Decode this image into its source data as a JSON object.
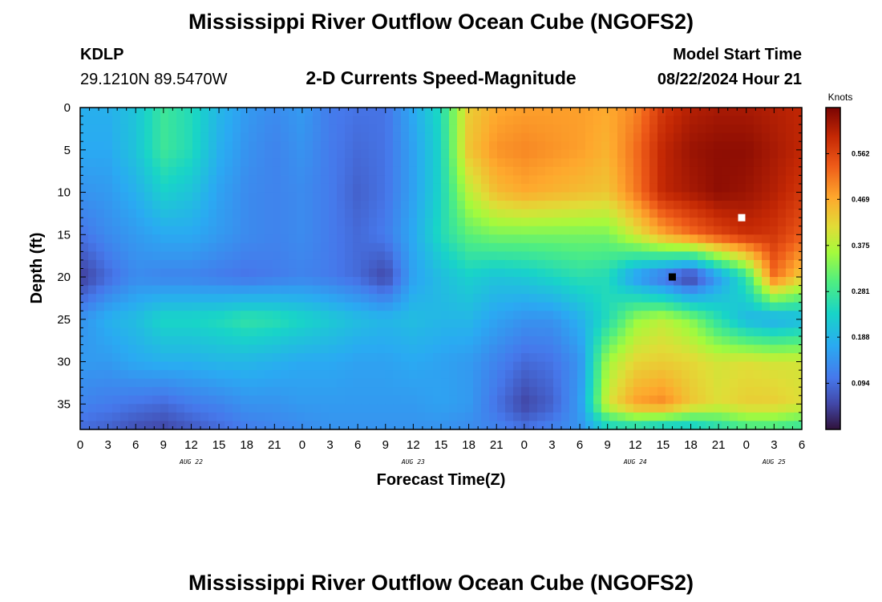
{
  "title": "Mississippi River Outflow Ocean Cube (NGOFS2)",
  "station": {
    "id": "KDLP",
    "coords": "29.1210N  89.5470W"
  },
  "plot_subtitle": "2-D Currents Speed-Magnitude",
  "model_start": {
    "label": "Model Start Time",
    "value": "08/22/2024 Hour 21"
  },
  "footer_title": "Mississippi River Outflow Ocean Cube (NGOFS2)",
  "chart_data": {
    "type": "heatmap",
    "title": "2-D Currents Speed-Magnitude",
    "xlabel": "Forecast Time(Z)",
    "ylabel": "Depth (ft)",
    "x_hours_range": [
      0,
      78
    ],
    "x_ticks": [
      "0",
      "3",
      "6",
      "9",
      "12",
      "15",
      "18",
      "21",
      "0",
      "3",
      "6",
      "9",
      "12",
      "15",
      "18",
      "21",
      "0",
      "3",
      "6",
      "9",
      "12",
      "15",
      "18",
      "21",
      "0",
      "3",
      "6"
    ],
    "x_tick_step_hours": 3,
    "day_labels": [
      {
        "label": "AUG 22",
        "hour": 12
      },
      {
        "label": "AUG 23",
        "hour": 36
      },
      {
        "label": "AUG 24",
        "hour": 60
      },
      {
        "label": "AUG 25",
        "hour": 75
      }
    ],
    "y_ticks": [
      0,
      5,
      10,
      15,
      20,
      25,
      30,
      35
    ],
    "y_range": [
      0,
      38
    ],
    "colorbar": {
      "unit": "Knots",
      "range": [
        0,
        0.656
      ],
      "tick_values": [
        0.094,
        0.188,
        0.281,
        0.375,
        0.469,
        0.562
      ],
      "ticks": [
        "0.094",
        "0.188",
        "0.281",
        "0.375",
        "0.469",
        "0.562"
      ]
    },
    "markers": [
      {
        "hour": 71.5,
        "depth": 13,
        "color": "#ffffff"
      },
      {
        "hour": 64,
        "depth": 20,
        "color": "#000000"
      }
    ],
    "grid_hours": [
      0,
      3,
      6,
      9,
      12,
      15,
      18,
      21,
      24,
      27,
      30,
      33,
      36,
      39,
      42,
      45,
      48,
      51,
      54,
      57,
      60,
      63,
      66,
      69,
      72,
      75,
      78
    ],
    "grid_depths": [
      0,
      5,
      10,
      15,
      20,
      25,
      30,
      35,
      38
    ],
    "values": [
      [
        0.18,
        0.18,
        0.21,
        0.28,
        0.25,
        0.19,
        0.15,
        0.13,
        0.15,
        0.11,
        0.1,
        0.1,
        0.17,
        0.25,
        0.43,
        0.47,
        0.48,
        0.48,
        0.48,
        0.47,
        0.5,
        0.58,
        0.61,
        0.62,
        0.62,
        0.61,
        0.6
      ],
      [
        0.17,
        0.17,
        0.21,
        0.28,
        0.25,
        0.18,
        0.14,
        0.12,
        0.14,
        0.11,
        0.09,
        0.1,
        0.16,
        0.24,
        0.44,
        0.49,
        0.5,
        0.49,
        0.48,
        0.46,
        0.52,
        0.6,
        0.63,
        0.64,
        0.64,
        0.62,
        0.6
      ],
      [
        0.14,
        0.15,
        0.18,
        0.23,
        0.21,
        0.16,
        0.13,
        0.12,
        0.13,
        0.11,
        0.08,
        0.1,
        0.16,
        0.24,
        0.38,
        0.45,
        0.47,
        0.46,
        0.45,
        0.44,
        0.51,
        0.6,
        0.62,
        0.64,
        0.63,
        0.61,
        0.58
      ],
      [
        0.1,
        0.13,
        0.15,
        0.17,
        0.17,
        0.15,
        0.13,
        0.12,
        0.13,
        0.11,
        0.09,
        0.11,
        0.17,
        0.25,
        0.31,
        0.33,
        0.33,
        0.33,
        0.33,
        0.33,
        0.4,
        0.47,
        0.52,
        0.56,
        0.59,
        0.58,
        0.54
      ],
      [
        0.04,
        0.09,
        0.13,
        0.12,
        0.12,
        0.11,
        0.1,
        0.11,
        0.12,
        0.11,
        0.09,
        0.05,
        0.16,
        0.2,
        0.23,
        0.21,
        0.22,
        0.24,
        0.26,
        0.25,
        0.15,
        0.09,
        0.03,
        0.15,
        0.27,
        0.52,
        0.43
      ],
      [
        0.14,
        0.18,
        0.2,
        0.24,
        0.24,
        0.25,
        0.27,
        0.26,
        0.24,
        0.22,
        0.2,
        0.19,
        0.2,
        0.19,
        0.19,
        0.16,
        0.14,
        0.14,
        0.18,
        0.25,
        0.35,
        0.38,
        0.34,
        0.26,
        0.19,
        0.17,
        0.19
      ],
      [
        0.15,
        0.15,
        0.17,
        0.18,
        0.18,
        0.19,
        0.19,
        0.18,
        0.17,
        0.17,
        0.16,
        0.16,
        0.17,
        0.16,
        0.15,
        0.12,
        0.09,
        0.1,
        0.14,
        0.36,
        0.42,
        0.43,
        0.42,
        0.4,
        0.41,
        0.4,
        0.4
      ],
      [
        0.12,
        0.11,
        0.1,
        0.09,
        0.11,
        0.12,
        0.14,
        0.14,
        0.15,
        0.15,
        0.15,
        0.15,
        0.15,
        0.16,
        0.15,
        0.1,
        0.05,
        0.08,
        0.15,
        0.4,
        0.48,
        0.5,
        0.44,
        0.41,
        0.43,
        0.43,
        0.41
      ],
      [
        0.09,
        0.08,
        0.06,
        0.05,
        0.07,
        0.09,
        0.11,
        0.12,
        0.13,
        0.14,
        0.14,
        0.14,
        0.14,
        0.14,
        0.13,
        0.12,
        0.1,
        0.12,
        0.14,
        0.22,
        0.23,
        0.2,
        0.2,
        0.24,
        0.28,
        0.28,
        0.26
      ]
    ]
  }
}
